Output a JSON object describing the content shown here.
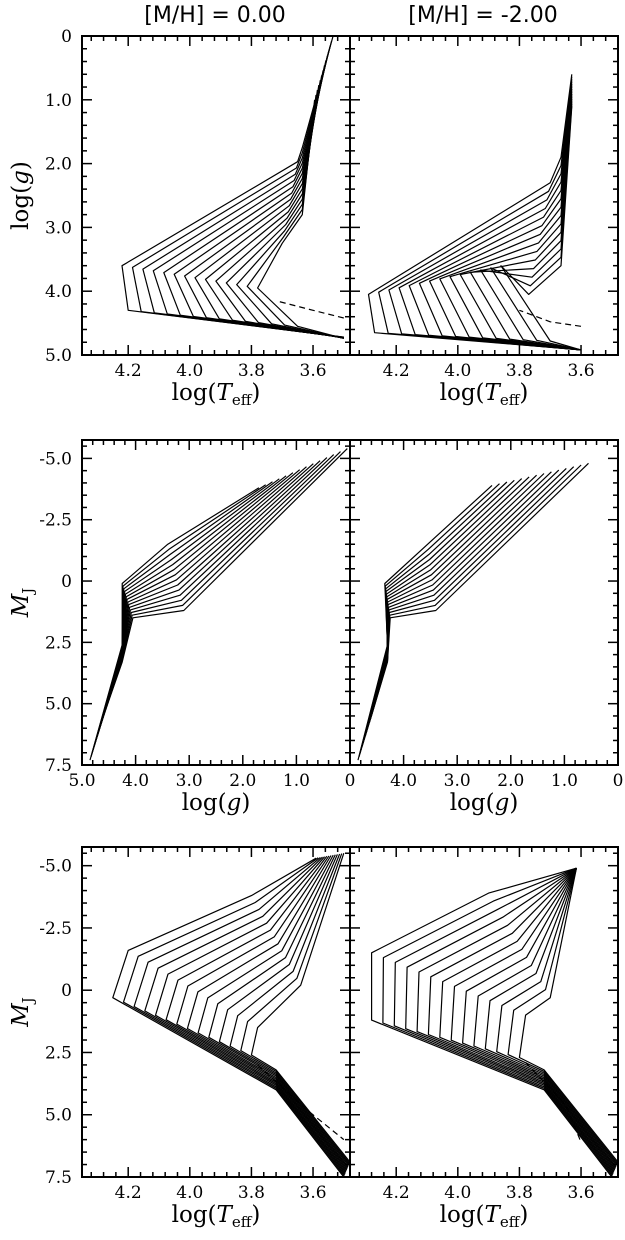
{
  "titles": {
    "left": "[M/H] = 0.00",
    "right": "[M/H] = -2.00"
  },
  "chart_data": [
    {
      "type": "line",
      "xlabel": {
        "main": "log(",
        "italic": "T",
        "sub": "eff",
        "close": ")"
      },
      "ylabel": {
        "main": "log(",
        "italic": "g",
        "close": ")"
      },
      "xlim": [
        4.35,
        3.48
      ],
      "ylim": [
        5.0,
        0.0
      ],
      "xticks": [
        "4.2",
        "4.0",
        "3.8",
        "3.6"
      ],
      "xtick_values": [
        4.2,
        4.0,
        3.8,
        3.6
      ],
      "yticks": [
        "0",
        "1.0",
        "2.0",
        "3.0",
        "4.0",
        "5.0"
      ],
      "ytick_values": [
        0,
        1,
        2,
        3,
        4,
        5
      ]
    },
    {
      "type": "line",
      "xlabel": {
        "main": "log(",
        "italic": "g",
        "close": ")"
      },
      "ylabel": {
        "italic": "M",
        "sub": "J"
      },
      "xlim": [
        5.0,
        0.0
      ],
      "ylim": [
        7.5,
        -5.75
      ],
      "xticks_left": [
        "5.0",
        "4.0",
        "3.0",
        "2.0",
        "1.0"
      ],
      "xticks_right": [
        "0",
        "4.0",
        "3.0",
        "2.0",
        "1.0",
        "0"
      ],
      "xtick_values": [
        5,
        4,
        3,
        2,
        1,
        0
      ],
      "yticks": [
        "-5.0",
        "-2.5",
        "0",
        "2.5",
        "5.0",
        "7.5"
      ],
      "ytick_values": [
        -5,
        -2.5,
        0,
        2.5,
        5,
        7.5
      ]
    },
    {
      "type": "line",
      "xlabel": {
        "main": "log(",
        "italic": "T",
        "sub": "eff",
        "close": ")"
      },
      "ylabel": {
        "italic": "M",
        "sub": "J"
      },
      "xlim": [
        4.35,
        3.48
      ],
      "ylim": [
        7.5,
        -5.75
      ],
      "xticks": [
        "4.2",
        "4.0",
        "3.8",
        "3.6"
      ],
      "xtick_values": [
        4.2,
        4.0,
        3.8,
        3.6
      ],
      "yticks": [
        "-5.0",
        "-2.5",
        "0",
        "2.5",
        "5.0",
        "7.5"
      ],
      "ytick_values": [
        -5,
        -2.5,
        0,
        2.5,
        5,
        7.5
      ]
    }
  ]
}
